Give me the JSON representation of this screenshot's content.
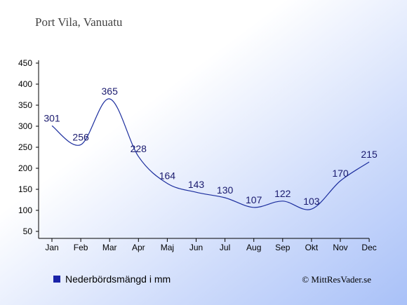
{
  "chart_data": {
    "type": "line",
    "title": "Port Vila, Vanuatu",
    "categories": [
      "Jan",
      "Feb",
      "Mar",
      "Apr",
      "Maj",
      "Jun",
      "Jul",
      "Aug",
      "Sep",
      "Okt",
      "Nov",
      "Dec"
    ],
    "series": [
      {
        "name": "Nederbördsmängd i mm",
        "values": [
          301,
          256,
          365,
          228,
          164,
          143,
          130,
          107,
          122,
          103,
          170,
          215
        ],
        "color": "#1c2e9e"
      }
    ],
    "yticks": [
      50,
      100,
      150,
      200,
      250,
      300,
      350,
      400,
      450
    ],
    "ylim": [
      40,
      450
    ],
    "grid": false,
    "legend_position": "bottom-left",
    "credit": "© MittResVader.se"
  }
}
